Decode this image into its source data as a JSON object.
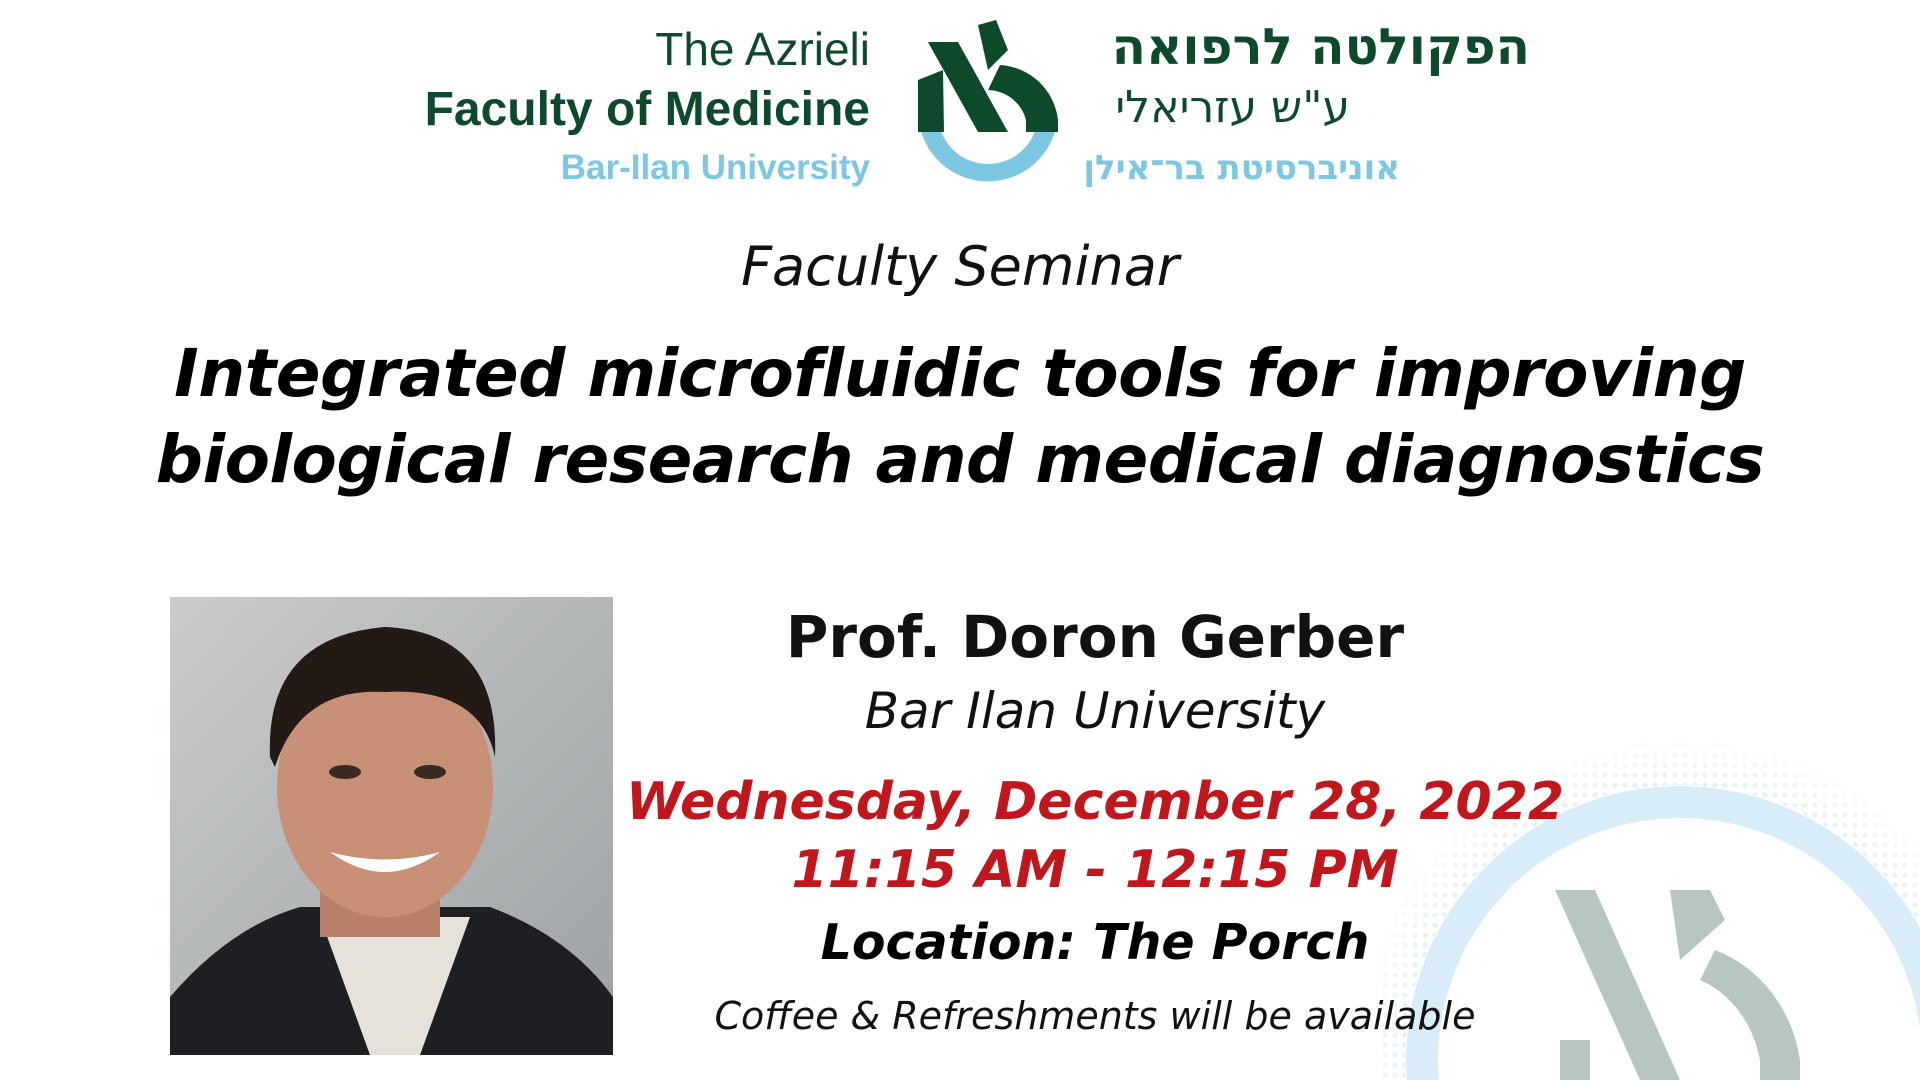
{
  "header": {
    "english": {
      "line1": "The Azrieli",
      "line2": "Faculty of Medicine",
      "line3": "Bar-Ilan University"
    },
    "hebrew": {
      "line1": "הפקולטה לרפואה",
      "line2": "ע\"ש עזריאלי",
      "line3": "אוניברסיטת בר־אילן"
    },
    "logo": "azrieli-faculty-logo",
    "colors": {
      "dark_green": "#0d4a2c",
      "light_blue": "#7cc8e3"
    }
  },
  "event": {
    "type": "Faculty Seminar",
    "title_line1": "Integrated microfluidic tools for improving",
    "title_line2": "biological research and medical diagnostics",
    "speaker": "Prof. Doron Gerber",
    "affiliation": "Bar Ilan University",
    "date": "Wednesday, December 28, 2022",
    "time": "11:15 AM - 12:15 PM",
    "location": "Location: The Porch",
    "note": "Coffee & Refreshments will be available",
    "accent_color": "#c0161c"
  }
}
